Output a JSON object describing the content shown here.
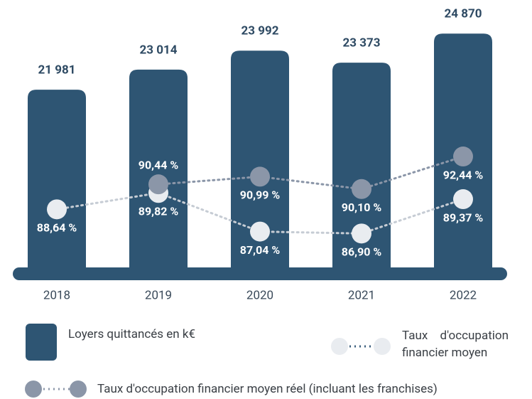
{
  "chart_data": {
    "type": "bar",
    "categories": [
      "2018",
      "2019",
      "2020",
      "2021",
      "2022"
    ],
    "ylim": [
      12500,
      26600
    ],
    "y2lim": [
      84,
      103.7
    ],
    "series": [
      {
        "name": "Loyers quittancés en k€",
        "color": "#2e5573",
        "values": [
          21981,
          23014,
          23992,
          23373,
          24870
        ],
        "value_labels": [
          "21 981",
          "23 014",
          "23 992",
          "23 373",
          "24 870"
        ]
      },
      {
        "name": "Taux d'occupation financier moyen",
        "type": "line",
        "axis": "y2",
        "color": "#e9ecf0",
        "values": [
          88.64,
          89.82,
          87.04,
          86.9,
          89.37
        ],
        "value_labels": [
          "88,64 %",
          "89,82 %",
          "87,04 %",
          "86,90 %",
          "89,37 %"
        ]
      },
      {
        "name": "Taux d'occupation financier moyen réel (incluant les franchises)",
        "type": "line",
        "axis": "y2",
        "color": "#8b96a8",
        "values": [
          null,
          90.44,
          90.99,
          90.1,
          92.44
        ],
        "value_labels": [
          null,
          "90,44 %",
          "90,99 %",
          "90,10 %",
          "92,44 %"
        ]
      }
    ]
  }
}
